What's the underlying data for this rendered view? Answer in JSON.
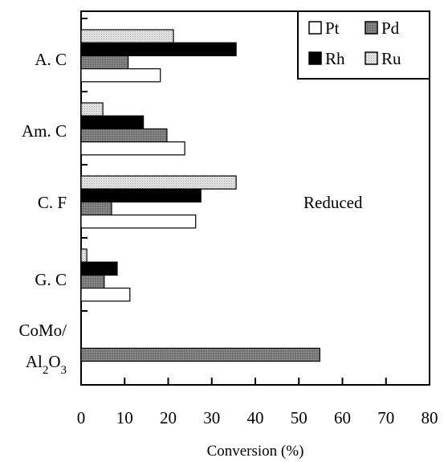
{
  "chart_data": {
    "type": "bar",
    "orientation": "horizontal",
    "xlabel": "Conversion (%)",
    "ylabel": "",
    "xlim": [
      0,
      80
    ],
    "xticks": [
      0,
      10,
      20,
      30,
      40,
      50,
      60,
      70,
      80
    ],
    "grid": false,
    "legend_position": "top-right",
    "annotation": "Reduced",
    "categories": [
      {
        "lines": [
          {
            "text": "A. C"
          }
        ]
      },
      {
        "lines": [
          {
            "text": "Am. C"
          }
        ]
      },
      {
        "lines": [
          {
            "text": "C. F"
          }
        ]
      },
      {
        "lines": [
          {
            "text": "G. C"
          }
        ]
      },
      {
        "lines": [
          {
            "text": "CoMo/"
          },
          {
            "text": "Al",
            "sub": "2",
            "tail": "O",
            "sub2": "3"
          }
        ]
      }
    ],
    "series": [
      {
        "name": "Pt",
        "color": "#ffffff",
        "pattern": "none",
        "values": [
          18.2,
          23.8,
          26.3,
          11.2,
          null
        ]
      },
      {
        "name": "Pd",
        "color": "#808080",
        "pattern": "hatched",
        "values": [
          10.8,
          19.7,
          7.0,
          5.3,
          54.8
        ]
      },
      {
        "name": "Rh",
        "color": "#000000",
        "pattern": "none",
        "values": [
          35.6,
          14.3,
          27.5,
          8.3,
          null
        ]
      },
      {
        "name": "Ru",
        "color": "#d9d9d9",
        "pattern": "dotted",
        "values": [
          21.2,
          5.0,
          35.6,
          1.3,
          null
        ]
      }
    ]
  }
}
